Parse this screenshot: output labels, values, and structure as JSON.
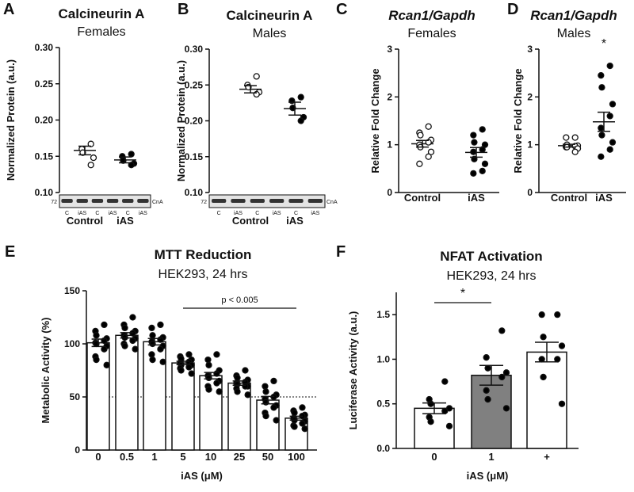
{
  "chart_data": [
    {
      "type": "dot",
      "panel": "A",
      "title": "Calcineurin A",
      "subtitle": "Females",
      "ylabel": "Normalized Protein (a.u.)",
      "ylim": [
        0.1,
        0.3
      ],
      "yticks": [
        {
          "value": 0.1,
          "label": "0.10"
        },
        {
          "value": 0.15,
          "label": "0.15"
        },
        {
          "value": 0.2,
          "label": "0.20"
        },
        {
          "value": 0.25,
          "label": "0.25"
        },
        {
          "value": 0.3,
          "label": "0.30"
        }
      ],
      "categories": [
        "Control",
        "iAS"
      ],
      "fills": [
        "#ffffff",
        "#000000"
      ],
      "points": [
        [
          0.167,
          0.16,
          0.155,
          0.148,
          0.138
        ],
        [
          0.153,
          0.15,
          0.144,
          0.14,
          0.138
        ]
      ],
      "values": [
        0.158,
        0.145
      ],
      "errors": [
        0.006,
        0.004
      ],
      "blot": {
        "marker": "72",
        "lanes": [
          "C",
          "iAS",
          "C",
          "iAS",
          "C",
          "iAS"
        ],
        "target": "CnA"
      }
    },
    {
      "type": "dot",
      "panel": "B",
      "title": "Calcineurin A",
      "subtitle": "Males",
      "ylabel": "Normalized Protein (a.u.)",
      "ylim": [
        0.1,
        0.3
      ],
      "yticks": [
        {
          "value": 0.1,
          "label": "0.10"
        },
        {
          "value": 0.15,
          "label": "0.15"
        },
        {
          "value": 0.2,
          "label": "0.20"
        },
        {
          "value": 0.25,
          "label": "0.25"
        },
        {
          "value": 0.3,
          "label": "0.30"
        }
      ],
      "categories": [
        "Control",
        "iAS"
      ],
      "fills": [
        "#ffffff",
        "#000000"
      ],
      "points": [
        [
          0.262,
          0.25,
          0.247,
          0.24,
          0.237
        ],
        [
          0.233,
          0.228,
          0.218,
          0.205,
          0.2
        ]
      ],
      "values": [
        0.244,
        0.217
      ],
      "errors": [
        0.005,
        0.009
      ],
      "blot": {
        "marker": "72",
        "lanes": [
          "C",
          "iAS",
          "C",
          "iAS",
          "C",
          "iAS"
        ],
        "target": "CnA"
      }
    },
    {
      "type": "dot",
      "panel": "C",
      "title": "Rcan1/Gapdh",
      "subtitle": "Females",
      "ylabel": "Relative Fold Change",
      "ylim": [
        0,
        3
      ],
      "yticks": [
        0,
        1,
        2,
        3
      ],
      "categories": [
        "Control",
        "iAS"
      ],
      "fills": [
        "#ffffff",
        "#000000"
      ],
      "points": [
        [
          1.38,
          1.25,
          1.2,
          1.1,
          1.05,
          1.0,
          0.95,
          0.85,
          0.75,
          0.6
        ],
        [
          1.32,
          1.2,
          1.05,
          1.0,
          0.9,
          0.85,
          0.7,
          0.6,
          0.45,
          0.4
        ]
      ],
      "values": [
        1.02,
        0.84
      ],
      "errors": [
        0.07,
        0.1
      ]
    },
    {
      "type": "dot",
      "panel": "D",
      "title": "Rcan1/Gapdh",
      "subtitle": "Males",
      "ylabel": "Relative Fold Change",
      "ylim": [
        0,
        3
      ],
      "yticks": [
        0,
        1,
        2,
        3
      ],
      "categories": [
        "Control",
        "iAS"
      ],
      "fills": [
        "#ffffff",
        "#000000"
      ],
      "points": [
        [
          1.15,
          1.15,
          1.0,
          0.98,
          0.97,
          0.95,
          0.95,
          0.92,
          0.85
        ],
        [
          2.65,
          2.45,
          2.2,
          1.85,
          1.6,
          1.35,
          1.2,
          1.05,
          0.9,
          0.75
        ]
      ],
      "values": [
        0.98,
        1.48
      ],
      "errors": [
        0.03,
        0.2
      ],
      "annotations": [
        "*"
      ]
    },
    {
      "type": "bar",
      "panel": "E",
      "title": "MTT Reduction",
      "subtitle": "HEK293, 24 hrs",
      "ylabel": "Metabolic Activity (%)",
      "xlabel": "iAS (μM)",
      "ylim": [
        0,
        150
      ],
      "yticks": [
        0,
        50,
        100,
        150
      ],
      "hline": 50,
      "categories": [
        "0",
        "0.5",
        "1",
        "5",
        "10",
        "25",
        "50",
        "100"
      ],
      "fills": [
        "#ffffff",
        "#ffffff",
        "#ffffff",
        "#ffffff",
        "#ffffff",
        "#ffffff",
        "#ffffff",
        "#ffffff"
      ],
      "point_color": "#000000",
      "points": [
        [
          118,
          112,
          108,
          105,
          103,
          101,
          100,
          98,
          95,
          88,
          85,
          80
        ],
        [
          125,
          118,
          115,
          112,
          110,
          108,
          106,
          105,
          103,
          100,
          98,
          95
        ],
        [
          118,
          115,
          108,
          106,
          104,
          102,
          100,
          98,
          95,
          90,
          85,
          83
        ],
        [
          90,
          88,
          86,
          85,
          83,
          82,
          80,
          80,
          78,
          77,
          75,
          72
        ],
        [
          90,
          85,
          80,
          75,
          72,
          70,
          68,
          65,
          63,
          60,
          57,
          55
        ],
        [
          75,
          70,
          68,
          66,
          64,
          63,
          62,
          60,
          60,
          58,
          55,
          52
        ],
        [
          65,
          60,
          55,
          52,
          50,
          48,
          45,
          42,
          40,
          35,
          32,
          28
        ],
        [
          40,
          37,
          35,
          33,
          32,
          30,
          28,
          27,
          25,
          23,
          22,
          20
        ]
      ],
      "values": [
        101,
        108,
        102,
        82,
        70,
        63,
        47,
        30
      ],
      "errors": [
        3.5,
        2.5,
        3,
        1.6,
        3,
        2,
        3.5,
        1.8
      ],
      "annotations": [
        "p < 0.005"
      ]
    },
    {
      "type": "bar",
      "panel": "F",
      "title": "NFAT Activation",
      "subtitle": "HEK293, 24 hrs",
      "ylabel": "Luciferase Activity (a.u.)",
      "xlabel": "iAS (μM)",
      "ylim": [
        0,
        1.75
      ],
      "yticks": [
        {
          "value": 0,
          "label": "0.0"
        },
        {
          "value": 0.5,
          "label": "0.5"
        },
        {
          "value": 1,
          "label": "1.0"
        },
        {
          "value": 1.5,
          "label": "1.5"
        }
      ],
      "categories": [
        "0",
        "1",
        "+"
      ],
      "fills": [
        "#ffffff",
        "#808080",
        "#ffffff"
      ],
      "point_color": "#000000",
      "points": [
        [
          0.75,
          0.55,
          0.5,
          0.45,
          0.42,
          0.35,
          0.3,
          0.25
        ],
        [
          1.32,
          1.02,
          0.9,
          0.85,
          0.8,
          0.65,
          0.55,
          0.45
        ],
        [
          1.5,
          1.5,
          1.25,
          1.15,
          1.0,
          1.0,
          0.8,
          0.5
        ]
      ],
      "values": [
        0.45,
        0.82,
        1.08
      ],
      "errors": [
        0.06,
        0.11,
        0.11
      ],
      "annotations": [
        "*"
      ]
    }
  ]
}
